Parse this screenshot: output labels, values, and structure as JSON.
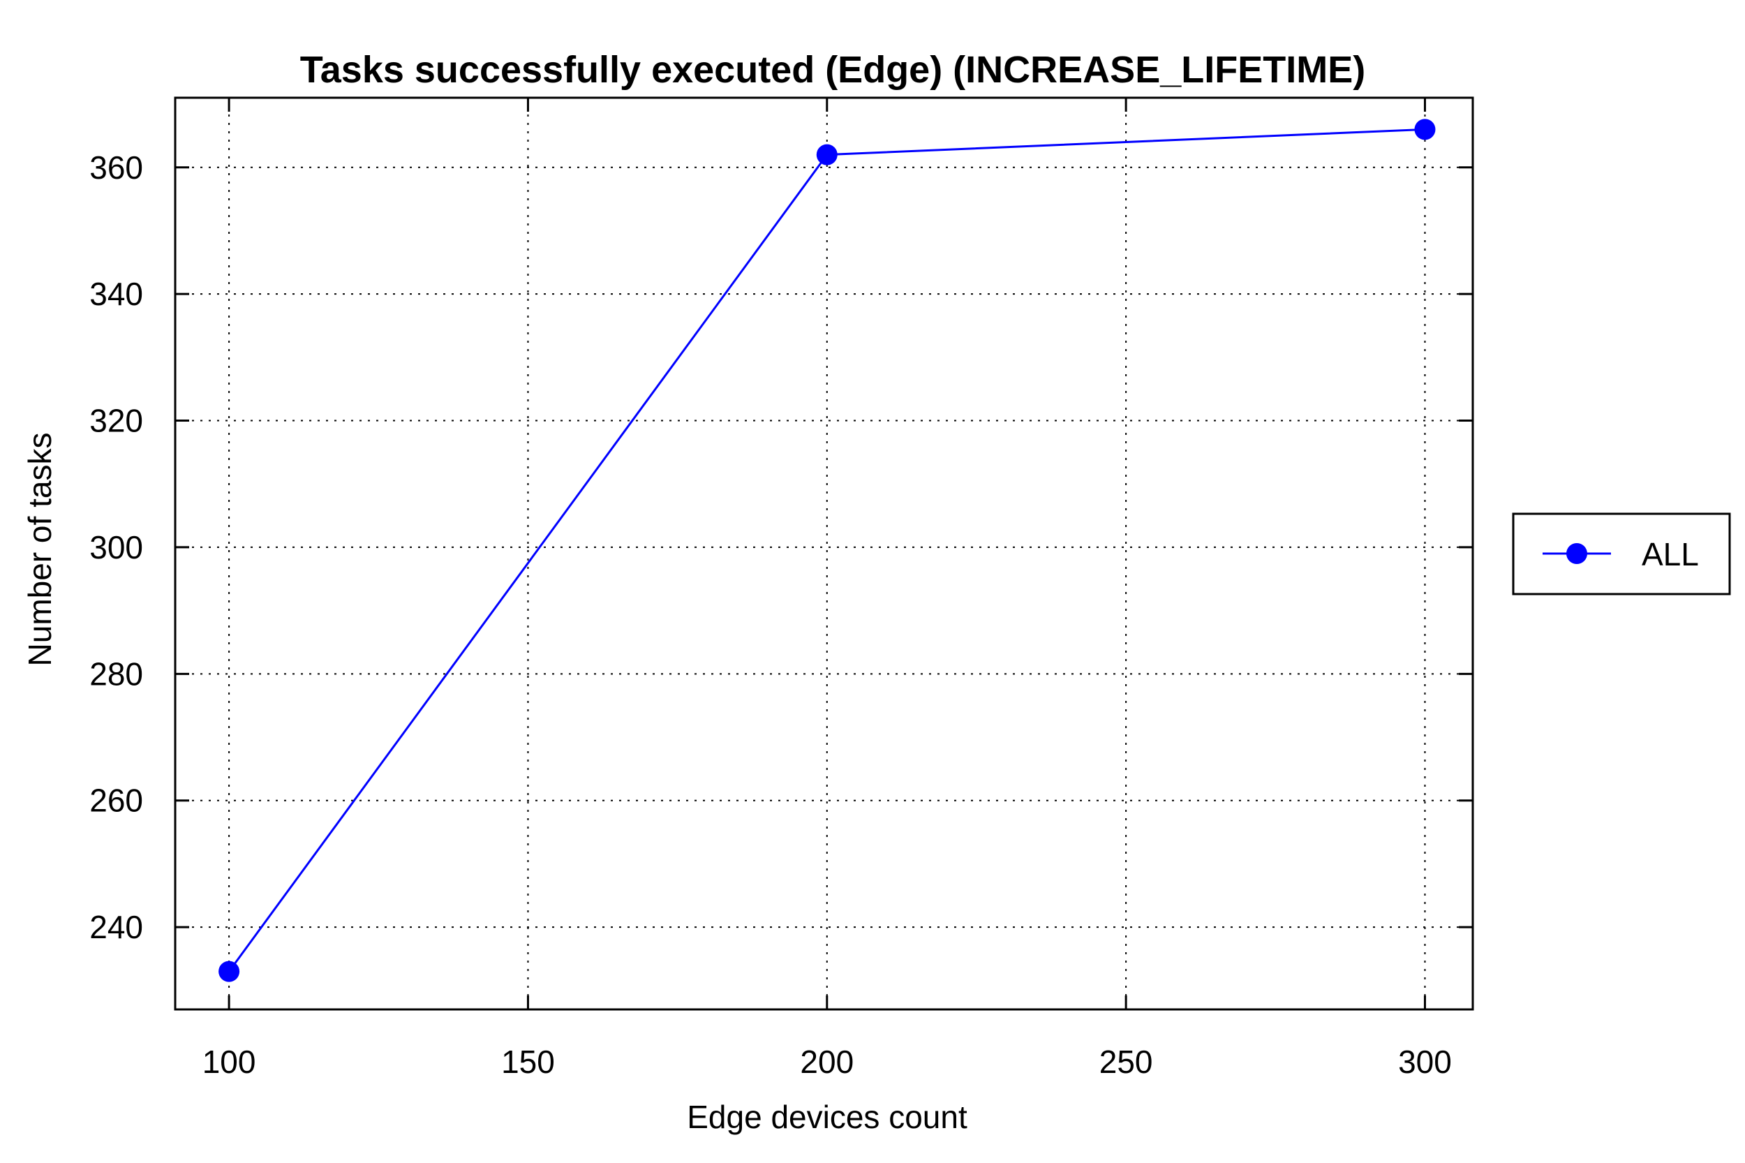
{
  "chart_data": {
    "type": "line",
    "title": "Tasks successfully executed (Edge) (INCREASE_LIFETIME)",
    "xlabel": "Edge devices count",
    "ylabel": "Number of tasks",
    "xlim": [
      91,
      308
    ],
    "ylim": [
      227,
      371
    ],
    "xticks": [
      100,
      150,
      200,
      250,
      300
    ],
    "yticks": [
      240,
      260,
      280,
      300,
      320,
      340,
      360
    ],
    "grid": true,
    "legend_position": "right",
    "series": [
      {
        "name": "ALL",
        "color": "#0000ff",
        "marker": "circle",
        "x": [
          100,
          200,
          300
        ],
        "y": [
          233,
          362,
          366
        ]
      }
    ]
  }
}
